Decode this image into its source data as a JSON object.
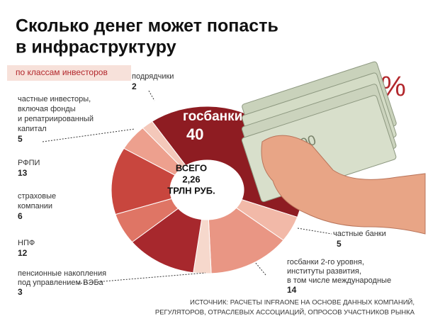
{
  "chart_data": {
    "type": "pie",
    "donut": true,
    "title_lines": [
      "Сколько денег может попасть",
      "в инфраструктуру"
    ],
    "subtitle": "по классам инвесторов",
    "center_lines": [
      "ВСЕГО",
      "2,26",
      "ТРЛН РУБ."
    ],
    "symbol": "%",
    "source_lines": [
      "ИСТОЧНИК: РАСЧЕТЫ INFRAONE НА ОСНОВЕ ДАННЫХ КОМПАНИЙ,",
      "РЕГУЛЯТОРОВ, ОТРАСЛЕВЫХ АССОЦИАЦИЙ, ОПРОСОВ УЧАСТНИКОВ РЫНКА"
    ],
    "categories": [
      [
        "госбанки"
      ],
      [
        "частные банки"
      ],
      [
        "госбанки 2-го уровня,",
        "институты развития,",
        "в том числе международные"
      ],
      [
        "пенсионные накопления",
        "под управлением ВЭБа"
      ],
      [
        "НПФ"
      ],
      [
        "страховые",
        "компании"
      ],
      [
        "РФПИ"
      ],
      [
        "частные инвесторы,",
        "включая фонды",
        "и репатриированный",
        "капитал"
      ],
      [
        "подрядчики"
      ]
    ],
    "values": [
      40,
      5,
      14,
      3,
      12,
      6,
      13,
      5,
      2
    ],
    "colors": [
      "#8e1c22",
      "#f2b9a8",
      "#e99684",
      "#f6d8cc",
      "#a7282d",
      "#df7565",
      "#c8463e",
      "#eda08e",
      "#f4c8ba"
    ]
  }
}
